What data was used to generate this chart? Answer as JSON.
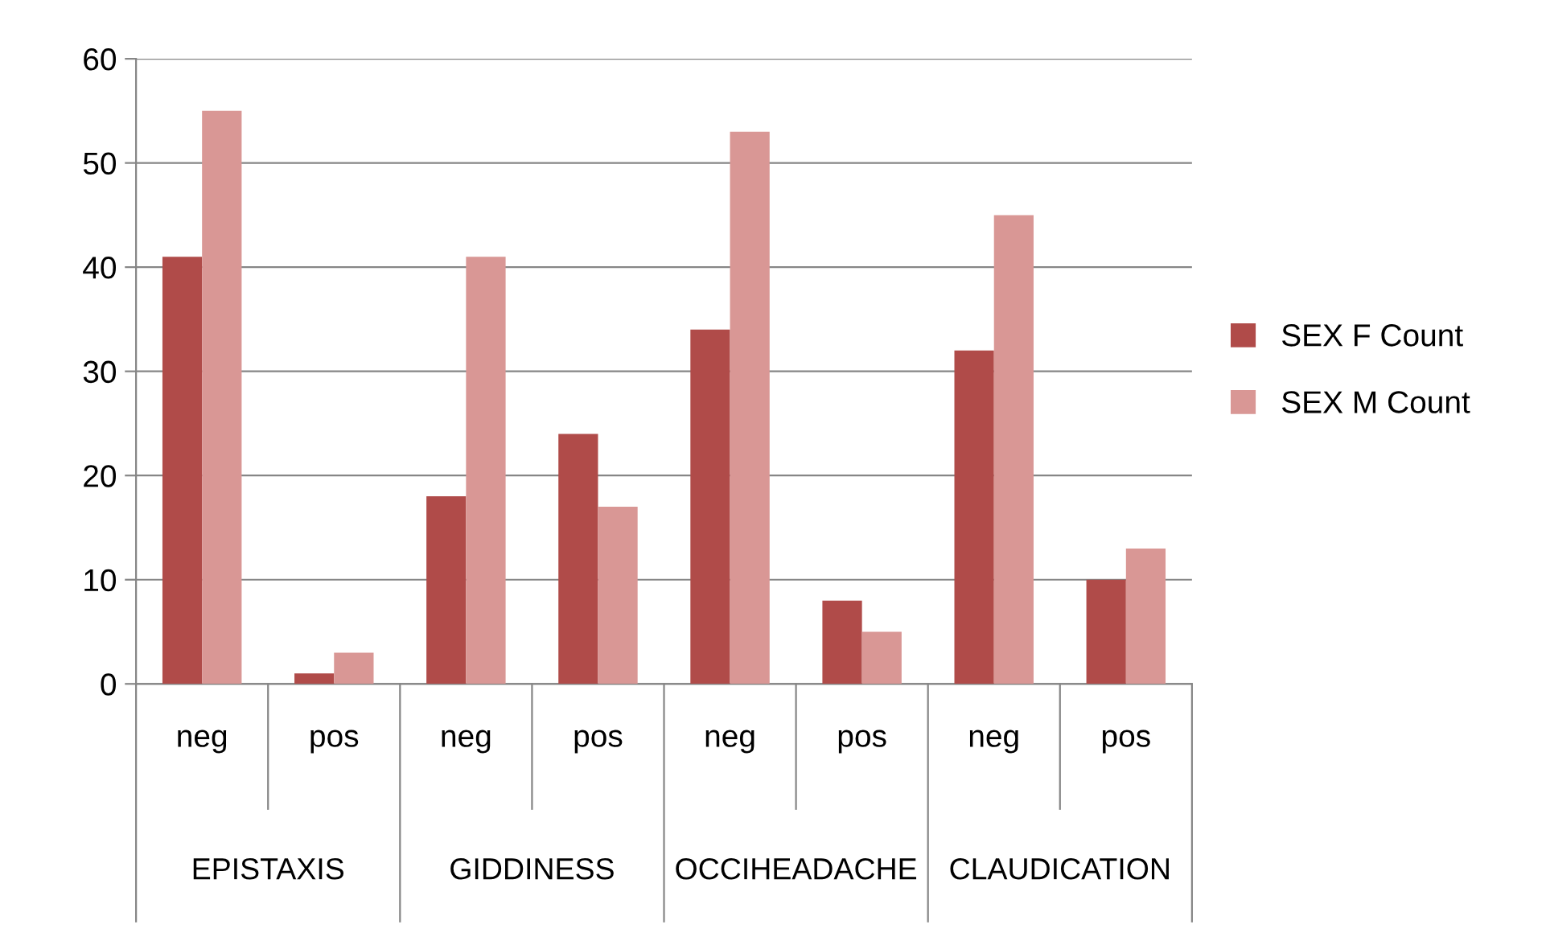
{
  "chart_data": {
    "type": "bar",
    "categories": [
      "neg",
      "pos",
      "neg",
      "pos",
      "neg",
      "pos",
      "neg",
      "pos"
    ],
    "series": [
      {
        "name": "SEX F Count",
        "color": "#b04b49",
        "values": [
          41,
          1,
          18,
          24,
          34,
          8,
          32,
          10
        ]
      },
      {
        "name": "SEX M Count",
        "color": "#d99795",
        "values": [
          55,
          3,
          41,
          17,
          53,
          5,
          45,
          13
        ]
      }
    ],
    "annotations": [
      "EPISTAXIS",
      "GIDDINESS",
      "OCCIHEADACHE",
      "CLAUDICATION"
    ],
    "ylim": [
      0,
      60
    ],
    "yticks": [
      0,
      10,
      20,
      30,
      40,
      50,
      60
    ],
    "grid": "y",
    "legend": "right"
  }
}
